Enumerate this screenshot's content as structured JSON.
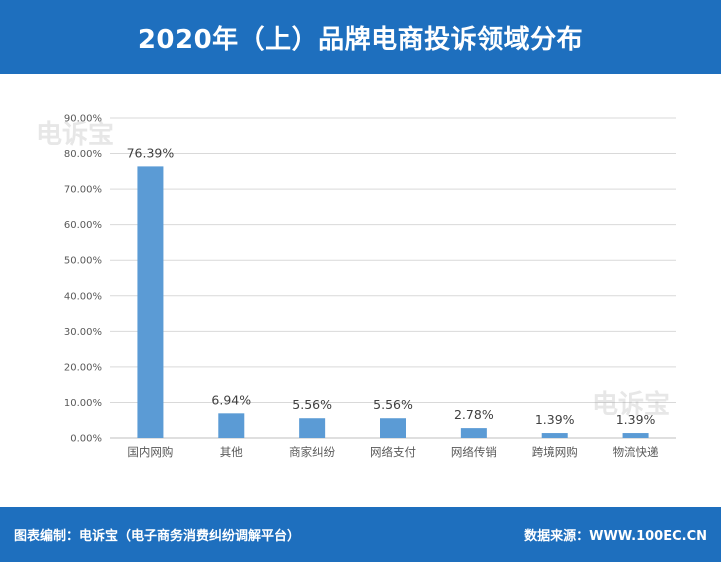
{
  "header": {
    "title": "2020年（上）品牌电商投诉领域分布"
  },
  "watermark": {
    "text": "电诉宝"
  },
  "footer": {
    "left": "图表编制：电诉宝（电子商务消费纠纷调解平台）",
    "right": "数据来源：WWW.100EC.CN"
  },
  "colors": {
    "header_bg": "#1e6fbe",
    "bar": "#5b9bd5",
    "grid": "#d9d9d9",
    "text": "#404040"
  },
  "chart_data": {
    "type": "bar",
    "categories": [
      "国内网购",
      "其他",
      "商家纠纷",
      "网络支付",
      "网络传销",
      "跨境网购",
      "物流快递"
    ],
    "values": [
      76.39,
      6.94,
      5.56,
      5.56,
      2.78,
      1.39,
      1.39
    ],
    "value_labels": [
      "76.39%",
      "6.94%",
      "5.56%",
      "5.56%",
      "2.78%",
      "1.39%",
      "1.39%"
    ],
    "ylim": [
      0,
      90
    ],
    "yticks": [
      "0.00%",
      "10.00%",
      "20.00%",
      "30.00%",
      "40.00%",
      "50.00%",
      "60.00%",
      "70.00%",
      "80.00%",
      "90.00%"
    ],
    "grid": true,
    "legend": false
  }
}
